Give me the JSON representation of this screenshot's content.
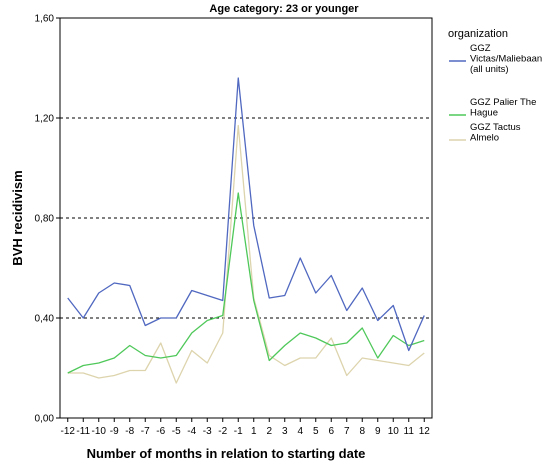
{
  "chart_data": {
    "type": "line",
    "title": "Age category: 23 or younger",
    "xlabel": "Number of months in relation to starting date",
    "ylabel": "BVH recidivism",
    "x": [
      -12,
      -11,
      -10,
      -9,
      -8,
      -7,
      -6,
      -5,
      -4,
      -3,
      -2,
      -1,
      1,
      2,
      3,
      4,
      5,
      6,
      7,
      8,
      9,
      10,
      11,
      12
    ],
    "ylim": [
      0,
      1.6
    ],
    "yticks": [
      "0,00",
      "0,40",
      "0,80",
      "1,20",
      "1,60"
    ],
    "ytick_values": [
      0,
      0.4,
      0.8,
      1.2,
      1.6
    ],
    "grid": "horizontal dashed at 0,40 / 0,80 / 1,20",
    "legend": {
      "title": "organization",
      "placement": "right"
    },
    "series": [
      {
        "name": "GGZ Victas/Maliebaan (all units)",
        "legend_lines": [
          "GGZ",
          "Victas/Maliebaan",
          "(all units)"
        ],
        "color": "#5068c0",
        "values": [
          0.48,
          0.4,
          0.5,
          0.54,
          0.53,
          0.37,
          0.4,
          0.4,
          0.51,
          0.49,
          0.47,
          1.36,
          0.77,
          0.48,
          0.49,
          0.64,
          0.5,
          0.57,
          0.43,
          0.52,
          0.39,
          0.45,
          0.27,
          0.41
        ]
      },
      {
        "name": "GGZ Palier The Hague",
        "legend_lines": [
          "GGZ Palier The",
          "Hague"
        ],
        "color": "#4fc85a",
        "values": [
          0.18,
          0.21,
          0.22,
          0.24,
          0.29,
          0.25,
          0.24,
          0.25,
          0.34,
          0.39,
          0.41,
          0.9,
          0.47,
          0.23,
          0.29,
          0.34,
          0.32,
          0.29,
          0.3,
          0.36,
          0.24,
          0.33,
          0.29,
          0.31
        ]
      },
      {
        "name": "GGZ Tactus Almelo",
        "legend_lines": [
          "GGZ Tactus",
          "Almelo"
        ],
        "color": "#ddd4ad",
        "values": [
          0.18,
          0.18,
          0.16,
          0.17,
          0.19,
          0.19,
          0.3,
          0.14,
          0.27,
          0.22,
          0.34,
          1.17,
          0.48,
          0.25,
          0.21,
          0.24,
          0.24,
          0.32,
          0.17,
          0.24,
          0.23,
          0.22,
          0.21,
          0.26
        ]
      }
    ]
  }
}
